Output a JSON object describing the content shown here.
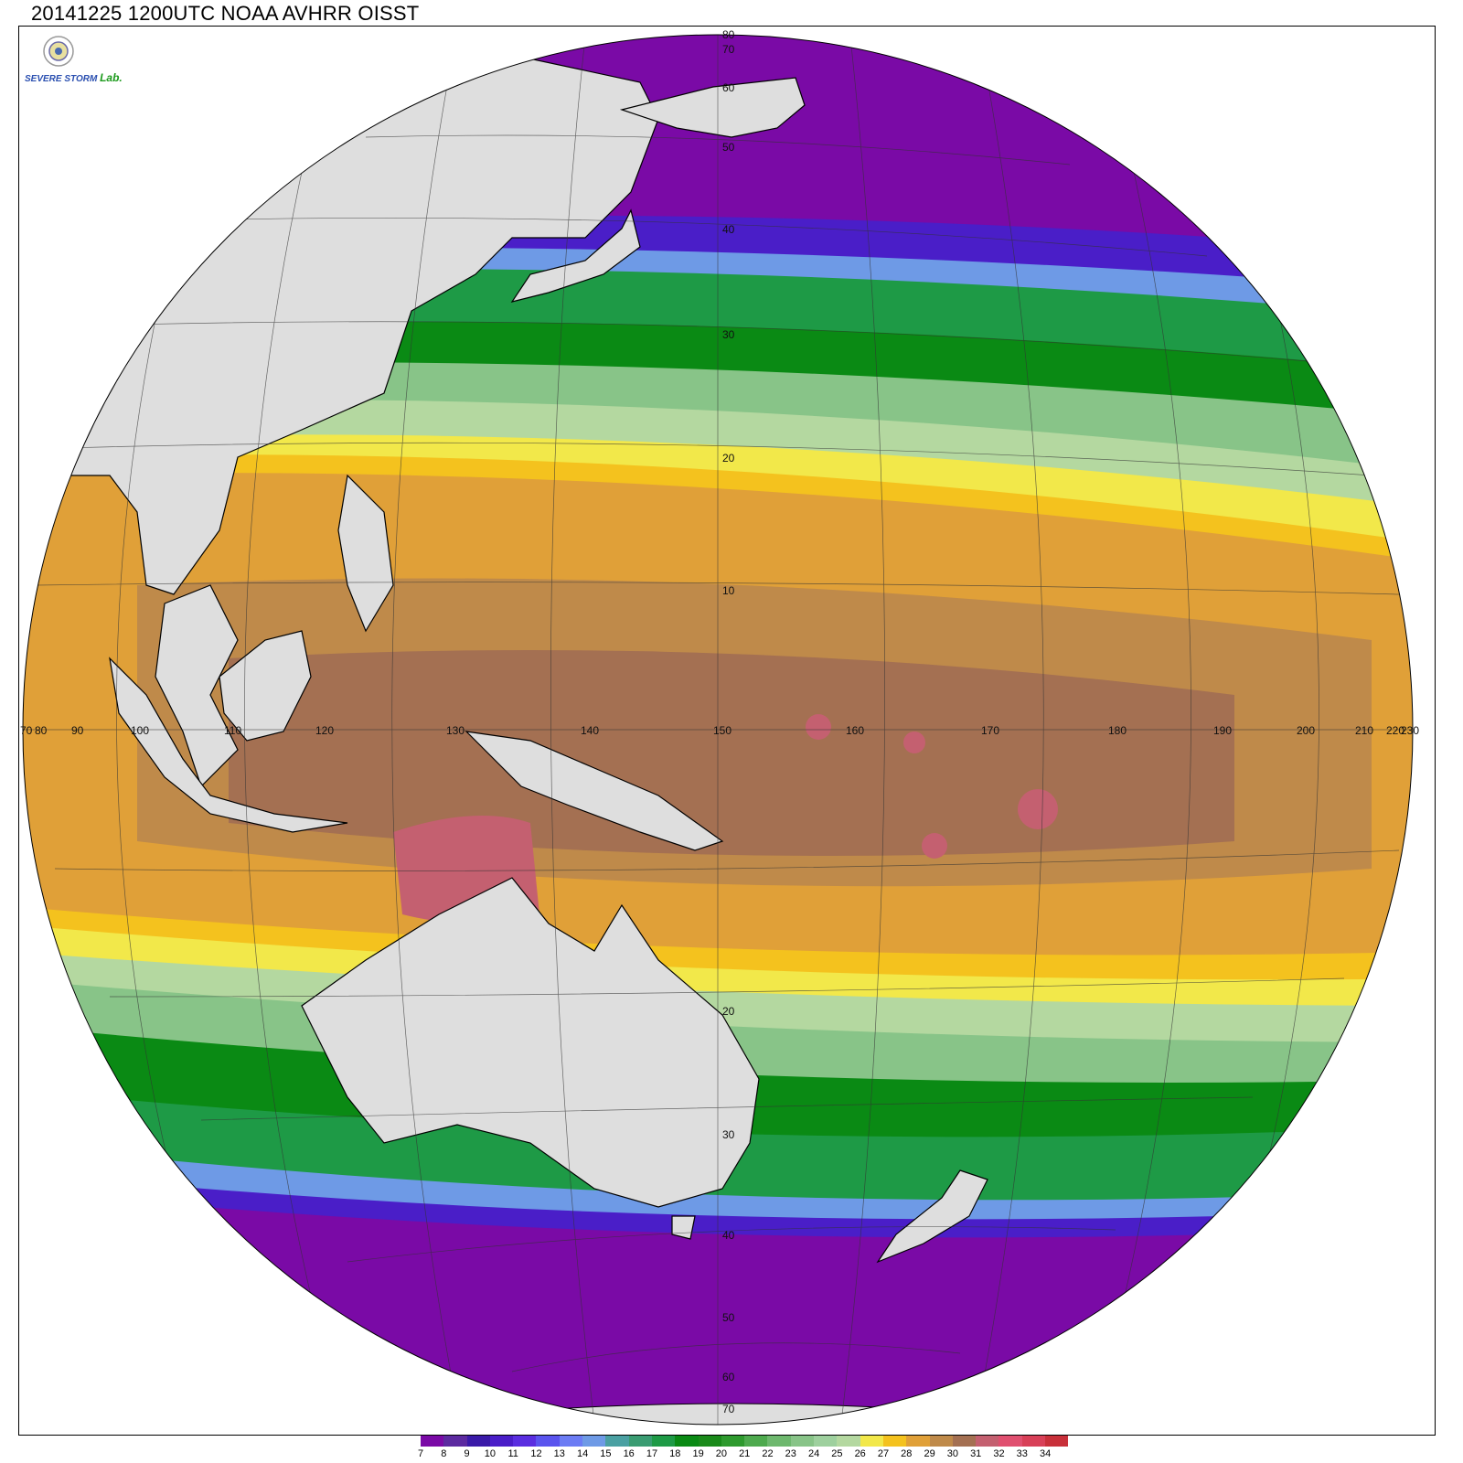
{
  "header": {
    "title": "20141225 1200UTC NOAA AVHRR OISST"
  },
  "logo": {
    "text_top": "SEVERE",
    "text_bottom": "STORM",
    "lab": "Lab.",
    "icon": "emblem-icon"
  },
  "colorbar": {
    "labels": [
      "7",
      "8",
      "9",
      "10",
      "11",
      "12",
      "13",
      "14",
      "15",
      "16",
      "17",
      "18",
      "19",
      "20",
      "21",
      "22",
      "23",
      "24",
      "25",
      "26",
      "27",
      "28",
      "29",
      "30",
      "31",
      "32",
      "33",
      "34"
    ],
    "colors": [
      "#7a0aa6",
      "#5c2aa0",
      "#3a1aa8",
      "#4a1ec8",
      "#5a2ee0",
      "#5a54ee",
      "#6c7cf4",
      "#6e9ae6",
      "#4aa0a2",
      "#3a9c72",
      "#1e9a46",
      "#0a8a14",
      "#1a8a1a",
      "#2e9a2e",
      "#4eaa4e",
      "#6eb86e",
      "#88c488",
      "#9ed09e",
      "#b4d8a0",
      "#f2e84a",
      "#f4c21e",
      "#e0a038",
      "#bf8a4a",
      "#a47052",
      "#c46070",
      "#e05070",
      "#d84058",
      "#c8303a"
    ]
  },
  "map_labels": {
    "lon": [
      "70",
      "80",
      "90",
      "100",
      "110",
      "120",
      "130",
      "140",
      "150",
      "160",
      "170",
      "180",
      "190",
      "200",
      "210",
      "220",
      "230"
    ],
    "lat_north": [
      "10",
      "20",
      "30",
      "40",
      "50",
      "60",
      "70",
      "80"
    ],
    "lat_south": [
      "20",
      "30",
      "40",
      "50",
      "60",
      "70"
    ],
    "equator_label": "150"
  },
  "colors": {
    "land": "#dedede",
    "ocean_warm": "#a47052",
    "ocean_tropical": "#e0a038",
    "ocean_cool": "#1e9a46",
    "ocean_cold": "#7a0aa6"
  }
}
